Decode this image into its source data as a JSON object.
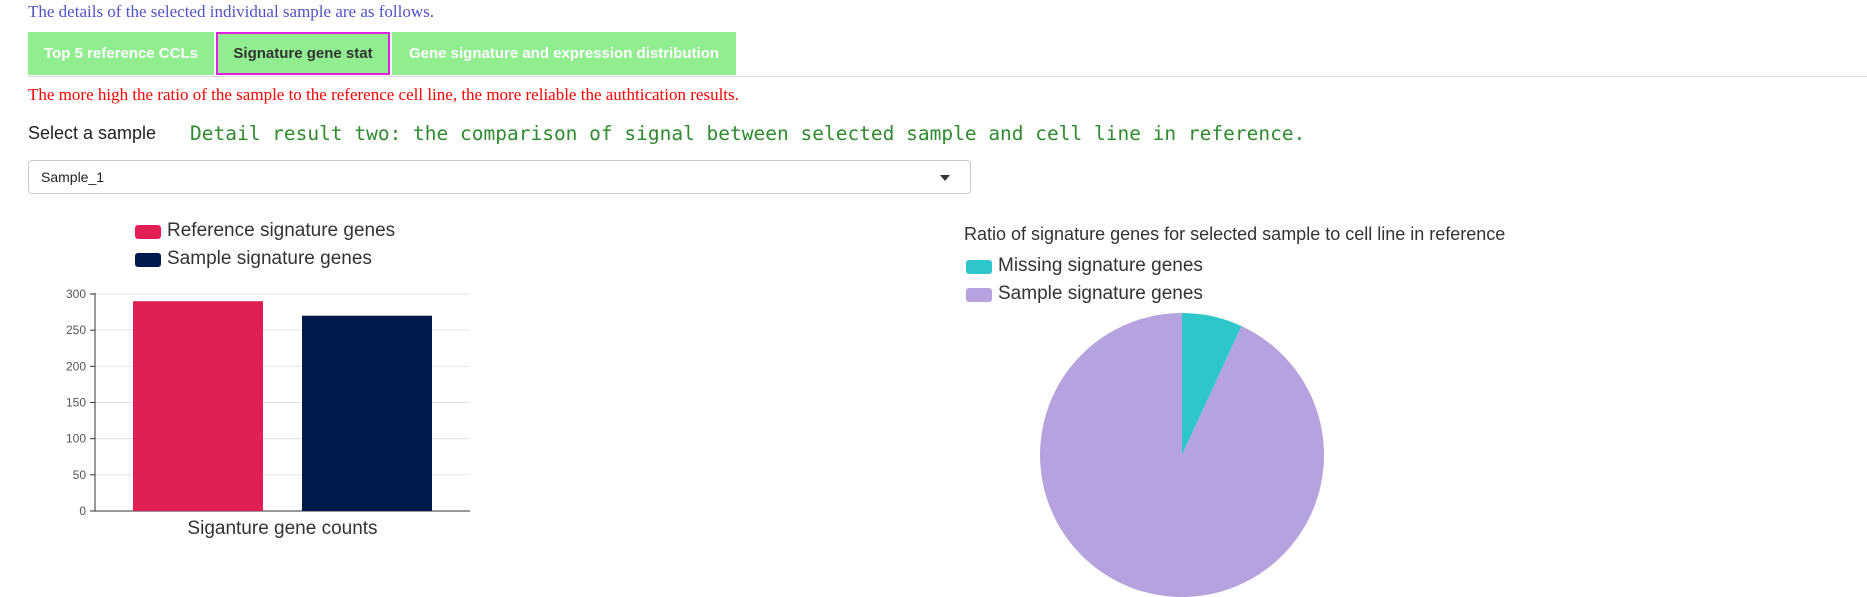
{
  "intro_text": "The details of the selected individual sample are as follows.",
  "tabs": [
    {
      "label": "Top 5 reference CCLs",
      "active": false
    },
    {
      "label": "Signature gene stat",
      "active": true
    },
    {
      "label": "Gene signature and expression distribution",
      "active": false
    }
  ],
  "warning_text": "The more high the ratio of the sample to the reference cell line, the more reliable the authtication results.",
  "select_label": "Select a sample",
  "detail_title": "Detail result two: the comparison of signal between selected sample and cell line in reference.",
  "sample_select": {
    "value": "Sample_1"
  },
  "colors": {
    "reference": "#e01f55",
    "sample": "#001a4d",
    "missing": "#2ec7c9",
    "pie_sample": "#b6a2de",
    "tab_bg": "#90ee90",
    "tab_active_border": "#e020e0"
  },
  "chart_data": [
    {
      "type": "bar",
      "legend": [
        "Reference signature genes",
        "Sample signature genes"
      ],
      "categories": [
        "Siganture gene counts"
      ],
      "series": [
        {
          "name": "Reference signature genes",
          "values": [
            290
          ]
        },
        {
          "name": "Sample signature genes",
          "values": [
            270
          ]
        }
      ],
      "yticks": [
        0,
        50,
        100,
        150,
        200,
        250,
        300
      ],
      "ylim": [
        0,
        300
      ],
      "xlabel": "Siganture gene counts",
      "grid": true,
      "legend_position": "top-left"
    },
    {
      "type": "pie",
      "title": "Ratio of signature genes for selected sample to cell line in reference",
      "legend": [
        "Missing signature genes",
        "Sample signature genes"
      ],
      "slices": [
        {
          "name": "Missing signature genes",
          "value": 20
        },
        {
          "name": "Sample signature genes",
          "value": 270
        }
      ],
      "legend_position": "top-left"
    }
  ]
}
